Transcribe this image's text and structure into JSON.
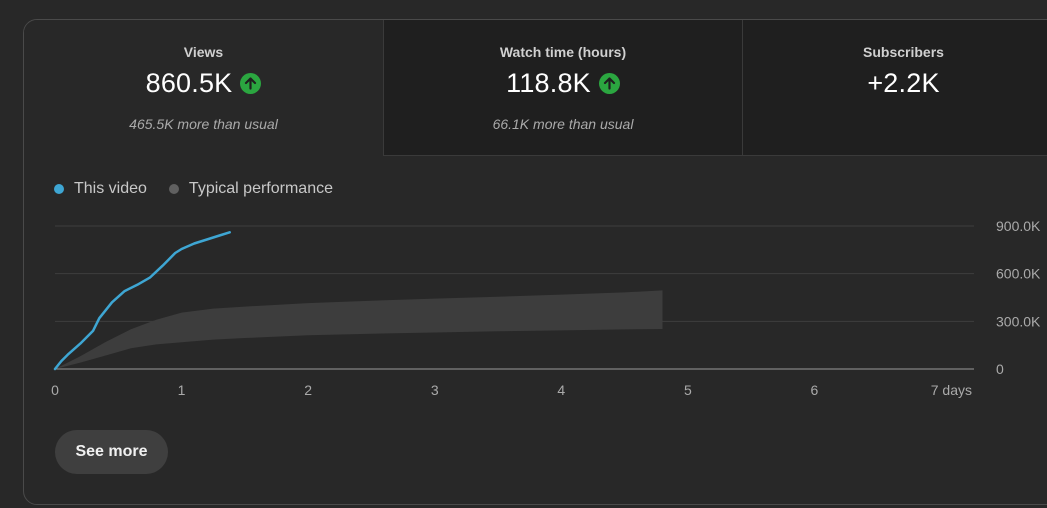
{
  "metrics": [
    {
      "label": "Views",
      "value": "860.5K",
      "trend": "up",
      "sub": "465.5K more than usual"
    },
    {
      "label": "Watch time (hours)",
      "value": "118.8K",
      "trend": "up",
      "sub": "66.1K more than usual"
    },
    {
      "label": "Subscribers",
      "value": "+2.2K",
      "trend": "none",
      "sub": ""
    }
  ],
  "legend": {
    "this_video": "This video",
    "typical": "Typical performance"
  },
  "colors": {
    "this_video": "#3ea6d3",
    "typical_dot": "#606060",
    "typical_band": "#3d3d3d",
    "trend_up": "#2ba640"
  },
  "see_more_label": "See more",
  "chart_data": {
    "type": "line",
    "xlabel": "",
    "ylabel": "",
    "x_ticks": [
      "0",
      "1",
      "2",
      "3",
      "4",
      "5",
      "6",
      "7 days"
    ],
    "y_ticks": [
      "0",
      "300.0K",
      "600.0K",
      "900.0K"
    ],
    "xlim": [
      0,
      7
    ],
    "ylim": [
      0,
      900000
    ],
    "grid": true,
    "legend_position": "top-left",
    "series": [
      {
        "name": "This video",
        "x": [
          0,
          0.05,
          0.1,
          0.2,
          0.3,
          0.35,
          0.45,
          0.55,
          0.65,
          0.75,
          0.85,
          0.95,
          1.0,
          1.1,
          1.2,
          1.3,
          1.38
        ],
        "y": [
          0,
          50000,
          90000,
          160000,
          240000,
          320000,
          420000,
          490000,
          530000,
          575000,
          650000,
          730000,
          755000,
          790000,
          815000,
          840000,
          860500
        ]
      }
    ],
    "typical_band": {
      "name": "Typical performance",
      "x": [
        0,
        0.2,
        0.4,
        0.6,
        0.8,
        1.0,
        1.25,
        1.5,
        2,
        2.5,
        3,
        3.5,
        4,
        4.5,
        4.8
      ],
      "upper": [
        0,
        80000,
        170000,
        250000,
        310000,
        355000,
        380000,
        393000,
        415000,
        430000,
        443000,
        455000,
        468000,
        482000,
        495000
      ],
      "lower": [
        0,
        40000,
        85000,
        130000,
        155000,
        168000,
        185000,
        195000,
        212000,
        222000,
        230000,
        237000,
        243000,
        249000,
        252000
      ]
    }
  }
}
